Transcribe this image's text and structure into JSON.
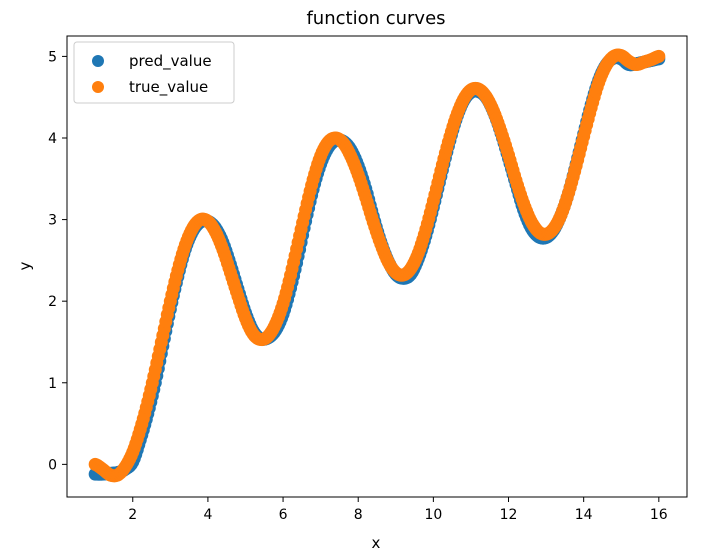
{
  "chart_data": {
    "type": "scatter",
    "title": "function curves",
    "xlabel": "x",
    "ylabel": "y",
    "xlim": [
      0.25,
      16.75
    ],
    "ylim": [
      -0.4,
      5.25
    ],
    "xticks": [
      2,
      4,
      6,
      8,
      10,
      12,
      14,
      16
    ],
    "yticks": [
      0,
      1,
      2,
      3,
      4,
      5
    ],
    "xtick_labels": [
      "2",
      "4",
      "6",
      "8",
      "10",
      "12",
      "14",
      "16"
    ],
    "ytick_labels": [
      "0",
      "1",
      "2",
      "3",
      "4",
      "5"
    ],
    "grid": false,
    "legend_position": "top-left",
    "series": [
      {
        "name": "pred_value",
        "color": "#1f77b4",
        "x": [
          1.0,
          1.2,
          1.4,
          1.6,
          1.8,
          2.0,
          2.2,
          2.4,
          2.6,
          2.8,
          3.0,
          3.2,
          3.4,
          3.6,
          3.8,
          4.0,
          4.2,
          4.4,
          4.6,
          4.8,
          5.0,
          5.2,
          5.4,
          5.6,
          5.8,
          6.0,
          6.2,
          6.4,
          6.6,
          6.8,
          7.0,
          7.2,
          7.4,
          7.6,
          7.8,
          8.0,
          8.2,
          8.4,
          8.6,
          8.8,
          9.0,
          9.2,
          9.4,
          9.6,
          9.8,
          10.0,
          10.2,
          10.4,
          10.6,
          10.8,
          11.0,
          11.2,
          11.4,
          11.6,
          11.8,
          12.0,
          12.2,
          12.4,
          12.6,
          12.8,
          13.0,
          13.2,
          13.4,
          13.6,
          13.8,
          14.0,
          14.2,
          14.4,
          14.6,
          14.8,
          15.0,
          15.2,
          15.4,
          15.6,
          15.8,
          16.0
        ],
        "y": [
          -0.12,
          -0.12,
          -0.11,
          -0.1,
          -0.06,
          0.03,
          0.3,
          0.62,
          1.0,
          1.45,
          1.9,
          2.3,
          2.64,
          2.86,
          2.97,
          2.98,
          2.9,
          2.72,
          2.45,
          2.15,
          1.86,
          1.64,
          1.54,
          1.55,
          1.64,
          1.84,
          2.16,
          2.55,
          2.98,
          3.37,
          3.68,
          3.88,
          3.97,
          3.96,
          3.86,
          3.66,
          3.38,
          3.04,
          2.73,
          2.49,
          2.33,
          2.28,
          2.33,
          2.52,
          2.8,
          3.15,
          3.53,
          3.9,
          4.22,
          4.45,
          4.56,
          4.57,
          4.5,
          4.32,
          4.06,
          3.75,
          3.43,
          3.12,
          2.9,
          2.79,
          2.78,
          2.87,
          3.06,
          3.33,
          3.68,
          4.05,
          4.41,
          4.71,
          4.9,
          4.98,
          4.97,
          4.9,
          4.91,
          4.93,
          4.95,
          4.97
        ]
      },
      {
        "name": "true_value",
        "color": "#ff7f0e",
        "x": [
          1.0,
          1.2,
          1.4,
          1.6,
          1.8,
          2.0,
          2.2,
          2.4,
          2.6,
          2.8,
          3.0,
          3.2,
          3.4,
          3.6,
          3.8,
          4.0,
          4.2,
          4.4,
          4.6,
          4.8,
          5.0,
          5.2,
          5.4,
          5.6,
          5.8,
          6.0,
          6.2,
          6.4,
          6.6,
          6.8,
          7.0,
          7.2,
          7.4,
          7.6,
          7.8,
          8.0,
          8.2,
          8.4,
          8.6,
          8.8,
          9.0,
          9.2,
          9.4,
          9.6,
          9.8,
          10.0,
          10.2,
          10.4,
          10.6,
          10.8,
          11.0,
          11.2,
          11.4,
          11.6,
          11.8,
          12.0,
          12.2,
          12.4,
          12.6,
          12.8,
          13.0,
          13.2,
          13.4,
          13.6,
          13.8,
          14.0,
          14.2,
          14.4,
          14.6,
          14.8,
          15.0,
          15.2,
          15.4,
          15.6,
          15.8,
          16.0
        ],
        "y": [
          0.0,
          -0.06,
          -0.13,
          -0.13,
          -0.03,
          0.15,
          0.43,
          0.77,
          1.16,
          1.58,
          2.0,
          2.38,
          2.69,
          2.9,
          3.0,
          2.98,
          2.85,
          2.63,
          2.35,
          2.06,
          1.79,
          1.6,
          1.53,
          1.57,
          1.72,
          1.97,
          2.32,
          2.72,
          3.12,
          3.49,
          3.78,
          3.95,
          4.0,
          3.94,
          3.78,
          3.55,
          3.27,
          2.97,
          2.7,
          2.48,
          2.35,
          2.32,
          2.4,
          2.59,
          2.88,
          3.23,
          3.6,
          3.95,
          4.25,
          4.47,
          4.59,
          4.6,
          4.51,
          4.33,
          4.08,
          3.79,
          3.48,
          3.2,
          2.98,
          2.85,
          2.82,
          2.89,
          3.06,
          3.33,
          3.66,
          4.02,
          4.37,
          4.68,
          4.89,
          5.0,
          5.01,
          4.94,
          4.9,
          4.93,
          4.96,
          5.0
        ]
      }
    ]
  }
}
